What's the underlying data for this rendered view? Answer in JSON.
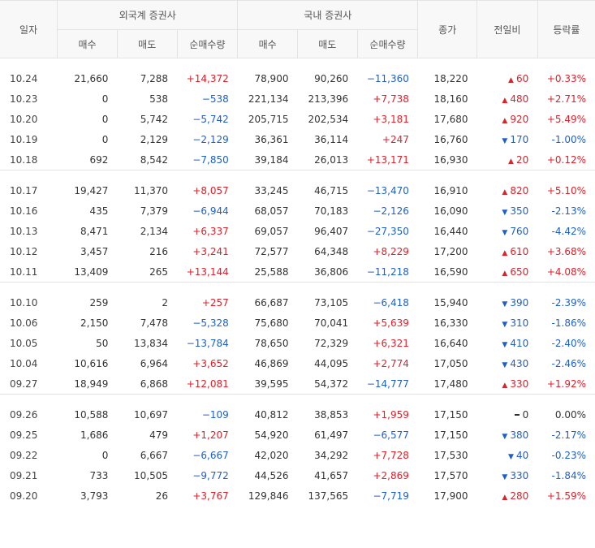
{
  "headers": {
    "date": "일자",
    "foreign_group": "외국계 증권사",
    "domestic_group": "국내 증권사",
    "buy": "매수",
    "sell": "매도",
    "net": "순매수량",
    "close": "종가",
    "diff": "전일비",
    "rate": "등락률"
  },
  "colors": {
    "up": "#e0202a",
    "down": "#1e5fcf",
    "flat": "#333333"
  },
  "groups": [
    [
      {
        "date": "10.24",
        "f_buy": "21,660",
        "f_sell": "7,288",
        "f_net": "+14,372",
        "d_buy": "78,900",
        "d_sell": "90,260",
        "d_net": "−11,360",
        "close": "18,220",
        "diff": "60",
        "dir": "up",
        "rate": "+0.33%"
      },
      {
        "date": "10.23",
        "f_buy": "0",
        "f_sell": "538",
        "f_net": "−538",
        "d_buy": "221,134",
        "d_sell": "213,396",
        "d_net": "+7,738",
        "close": "18,160",
        "diff": "480",
        "dir": "up",
        "rate": "+2.71%"
      },
      {
        "date": "10.20",
        "f_buy": "0",
        "f_sell": "5,742",
        "f_net": "−5,742",
        "d_buy": "205,715",
        "d_sell": "202,534",
        "d_net": "+3,181",
        "close": "17,680",
        "diff": "920",
        "dir": "up",
        "rate": "+5.49%"
      },
      {
        "date": "10.19",
        "f_buy": "0",
        "f_sell": "2,129",
        "f_net": "−2,129",
        "d_buy": "36,361",
        "d_sell": "36,114",
        "d_net": "+247",
        "close": "16,760",
        "diff": "170",
        "dir": "down",
        "rate": "-1.00%"
      },
      {
        "date": "10.18",
        "f_buy": "692",
        "f_sell": "8,542",
        "f_net": "−7,850",
        "d_buy": "39,184",
        "d_sell": "26,013",
        "d_net": "+13,171",
        "close": "16,930",
        "diff": "20",
        "dir": "up",
        "rate": "+0.12%"
      }
    ],
    [
      {
        "date": "10.17",
        "f_buy": "19,427",
        "f_sell": "11,370",
        "f_net": "+8,057",
        "d_buy": "33,245",
        "d_sell": "46,715",
        "d_net": "−13,470",
        "close": "16,910",
        "diff": "820",
        "dir": "up",
        "rate": "+5.10%"
      },
      {
        "date": "10.16",
        "f_buy": "435",
        "f_sell": "7,379",
        "f_net": "−6,944",
        "d_buy": "68,057",
        "d_sell": "70,183",
        "d_net": "−2,126",
        "close": "16,090",
        "diff": "350",
        "dir": "down",
        "rate": "-2.13%"
      },
      {
        "date": "10.13",
        "f_buy": "8,471",
        "f_sell": "2,134",
        "f_net": "+6,337",
        "d_buy": "69,057",
        "d_sell": "96,407",
        "d_net": "−27,350",
        "close": "16,440",
        "diff": "760",
        "dir": "down",
        "rate": "-4.42%"
      },
      {
        "date": "10.12",
        "f_buy": "3,457",
        "f_sell": "216",
        "f_net": "+3,241",
        "d_buy": "72,577",
        "d_sell": "64,348",
        "d_net": "+8,229",
        "close": "17,200",
        "diff": "610",
        "dir": "up",
        "rate": "+3.68%"
      },
      {
        "date": "10.11",
        "f_buy": "13,409",
        "f_sell": "265",
        "f_net": "+13,144",
        "d_buy": "25,588",
        "d_sell": "36,806",
        "d_net": "−11,218",
        "close": "16,590",
        "diff": "650",
        "dir": "up",
        "rate": "+4.08%"
      }
    ],
    [
      {
        "date": "10.10",
        "f_buy": "259",
        "f_sell": "2",
        "f_net": "+257",
        "d_buy": "66,687",
        "d_sell": "73,105",
        "d_net": "−6,418",
        "close": "15,940",
        "diff": "390",
        "dir": "down",
        "rate": "-2.39%"
      },
      {
        "date": "10.06",
        "f_buy": "2,150",
        "f_sell": "7,478",
        "f_net": "−5,328",
        "d_buy": "75,680",
        "d_sell": "70,041",
        "d_net": "+5,639",
        "close": "16,330",
        "diff": "310",
        "dir": "down",
        "rate": "-1.86%"
      },
      {
        "date": "10.05",
        "f_buy": "50",
        "f_sell": "13,834",
        "f_net": "−13,784",
        "d_buy": "78,650",
        "d_sell": "72,329",
        "d_net": "+6,321",
        "close": "16,640",
        "diff": "410",
        "dir": "down",
        "rate": "-2.40%"
      },
      {
        "date": "10.04",
        "f_buy": "10,616",
        "f_sell": "6,964",
        "f_net": "+3,652",
        "d_buy": "46,869",
        "d_sell": "44,095",
        "d_net": "+2,774",
        "close": "17,050",
        "diff": "430",
        "dir": "down",
        "rate": "-2.46%"
      },
      {
        "date": "09.27",
        "f_buy": "18,949",
        "f_sell": "6,868",
        "f_net": "+12,081",
        "d_buy": "39,595",
        "d_sell": "54,372",
        "d_net": "−14,777",
        "close": "17,480",
        "diff": "330",
        "dir": "up",
        "rate": "+1.92%"
      }
    ],
    [
      {
        "date": "09.26",
        "f_buy": "10,588",
        "f_sell": "10,697",
        "f_net": "−109",
        "d_buy": "40,812",
        "d_sell": "38,853",
        "d_net": "+1,959",
        "close": "17,150",
        "diff": "0",
        "dir": "flat",
        "rate": "0.00%"
      },
      {
        "date": "09.25",
        "f_buy": "1,686",
        "f_sell": "479",
        "f_net": "+1,207",
        "d_buy": "54,920",
        "d_sell": "61,497",
        "d_net": "−6,577",
        "close": "17,150",
        "diff": "380",
        "dir": "down",
        "rate": "-2.17%"
      },
      {
        "date": "09.22",
        "f_buy": "0",
        "f_sell": "6,667",
        "f_net": "−6,667",
        "d_buy": "42,020",
        "d_sell": "34,292",
        "d_net": "+7,728",
        "close": "17,530",
        "diff": "40",
        "dir": "down",
        "rate": "-0.23%"
      },
      {
        "date": "09.21",
        "f_buy": "733",
        "f_sell": "10,505",
        "f_net": "−9,772",
        "d_buy": "44,526",
        "d_sell": "41,657",
        "d_net": "+2,869",
        "close": "17,570",
        "diff": "330",
        "dir": "down",
        "rate": "-1.84%"
      },
      {
        "date": "09.20",
        "f_buy": "3,793",
        "f_sell": "26",
        "f_net": "+3,767",
        "d_buy": "129,846",
        "d_sell": "137,565",
        "d_net": "−7,719",
        "close": "17,900",
        "diff": "280",
        "dir": "up",
        "rate": "+1.59%"
      }
    ]
  ]
}
